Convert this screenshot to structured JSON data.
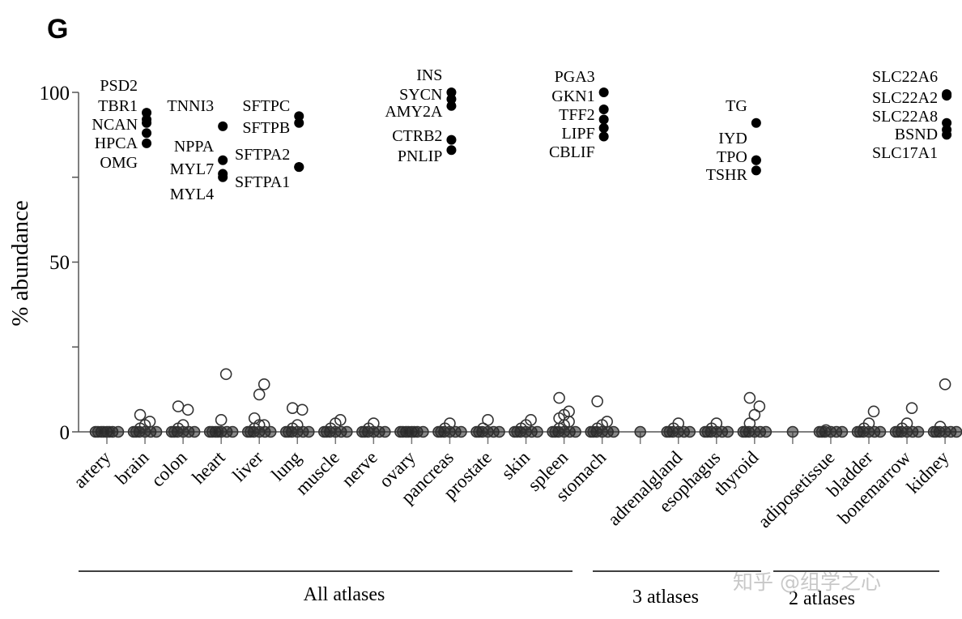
{
  "panel_label": "G",
  "watermark": "知乎 @组学之心",
  "chart_data": {
    "type": "scatter",
    "title": "",
    "xlabel": "",
    "ylabel": "% abundance",
    "ylim": [
      0,
      100
    ],
    "yticks": [
      "0",
      "50",
      "100"
    ],
    "minor_yticks": [
      25,
      75
    ],
    "grid": false,
    "categories": [
      "artery",
      "brain",
      "colon",
      "heart",
      "liver",
      "lung",
      "muscle",
      "nerve",
      "ovary",
      "pancreas",
      "prostate",
      "skin",
      "spleen",
      "stomach",
      "",
      "adrenalgland",
      "esophagus",
      "thyroid",
      "",
      "adiposetissue",
      "bladder",
      "bonemarrow",
      "kidney"
    ],
    "background_points_open": [
      [
        0,
        0,
        0,
        0,
        0,
        0,
        0,
        0
      ],
      [
        0,
        0,
        0,
        0,
        0,
        0,
        1,
        2,
        3,
        5
      ],
      [
        0,
        0,
        0,
        0,
        0,
        0,
        1,
        2,
        6.5,
        7.5
      ],
      [
        0,
        0,
        0,
        0,
        0,
        0,
        0,
        3.5,
        17
      ],
      [
        0,
        0,
        0,
        0,
        0,
        0,
        1,
        2,
        2,
        4,
        11,
        14
      ],
      [
        0,
        0,
        0,
        0,
        0,
        0,
        1,
        2,
        6.5,
        7
      ],
      [
        0,
        0,
        0,
        0,
        0,
        0,
        1,
        2.5,
        3.5
      ],
      [
        0,
        0,
        0,
        0,
        0,
        0,
        1,
        2.5
      ],
      [
        0,
        0,
        0,
        0,
        0,
        0,
        0,
        0
      ],
      [
        0,
        0,
        0,
        0,
        0,
        0,
        1,
        2.5
      ],
      [
        0,
        0,
        0,
        0,
        0,
        0,
        1,
        3.5
      ],
      [
        0,
        0,
        0,
        0,
        0,
        0,
        1,
        2,
        3.5
      ],
      [
        0,
        0,
        0,
        0,
        0,
        0,
        1,
        2,
        3,
        4,
        5,
        6,
        10
      ],
      [
        0,
        0,
        0,
        0,
        0,
        0,
        1,
        2,
        3,
        9
      ],
      [
        0
      ],
      [
        0,
        0,
        0,
        0,
        0,
        0,
        1,
        2.5
      ],
      [
        0,
        0,
        0,
        0,
        0,
        0,
        1,
        2.5
      ],
      [
        0,
        0,
        0,
        0,
        0,
        0,
        2.5,
        5,
        7.5,
        10
      ],
      [
        0
      ],
      [
        0,
        0,
        0,
        0,
        0,
        0,
        0.5
      ],
      [
        0,
        0,
        0,
        0,
        0,
        0,
        1,
        2.5,
        6
      ],
      [
        0,
        0,
        0,
        0,
        0,
        0,
        1,
        2.5,
        7
      ],
      [
        0,
        0,
        0,
        0,
        0,
        0,
        1.5,
        14
      ]
    ],
    "marker_genes": [
      {
        "category": "brain",
        "genes": [
          "PSD2",
          "TBR1",
          "NCAN",
          "HPCA",
          "OMG"
        ],
        "values": [
          94,
          92,
          91,
          88,
          85
        ]
      },
      {
        "category": "heart",
        "genes": [
          "TNNI3",
          "NPPA",
          "MYL7",
          "MYL4"
        ],
        "values": [
          90,
          80,
          76,
          75
        ]
      },
      {
        "category": "lung",
        "genes": [
          "SFTPC",
          "SFTPB",
          "SFTPA2",
          "SFTPA1"
        ],
        "values": [
          93,
          91,
          78,
          78
        ]
      },
      {
        "category": "pancreas",
        "genes": [
          "INS",
          "SYCN",
          "AMY2A",
          "CTRB2",
          "PNLIP"
        ],
        "values": [
          100,
          98,
          96,
          86,
          83
        ]
      },
      {
        "category": "stomach",
        "genes": [
          "PGA3",
          "GKN1",
          "TFF2",
          "LIPF",
          "CBLIF"
        ],
        "values": [
          100,
          95,
          92,
          89.5,
          87
        ]
      },
      {
        "category": "thyroid",
        "genes": [
          "TG",
          "IYD",
          "TPO",
          "TSHR"
        ],
        "values": [
          91,
          80,
          80,
          77
        ]
      },
      {
        "category": "kidney",
        "genes": [
          "SLC22A6",
          "SLC22A2",
          "SLC22A8",
          "BSND",
          "SLC17A1"
        ],
        "values": [
          99.5,
          99,
          91,
          89,
          87.5
        ]
      }
    ],
    "groups": [
      {
        "label": "All atlases",
        "categories": [
          "artery",
          "stomach"
        ]
      },
      {
        "label": "3 atlases",
        "categories": [
          "adrenalgland",
          "thyroid"
        ]
      },
      {
        "label": "2 atlases",
        "categories": [
          "adiposetissue",
          "kidney"
        ]
      }
    ]
  }
}
